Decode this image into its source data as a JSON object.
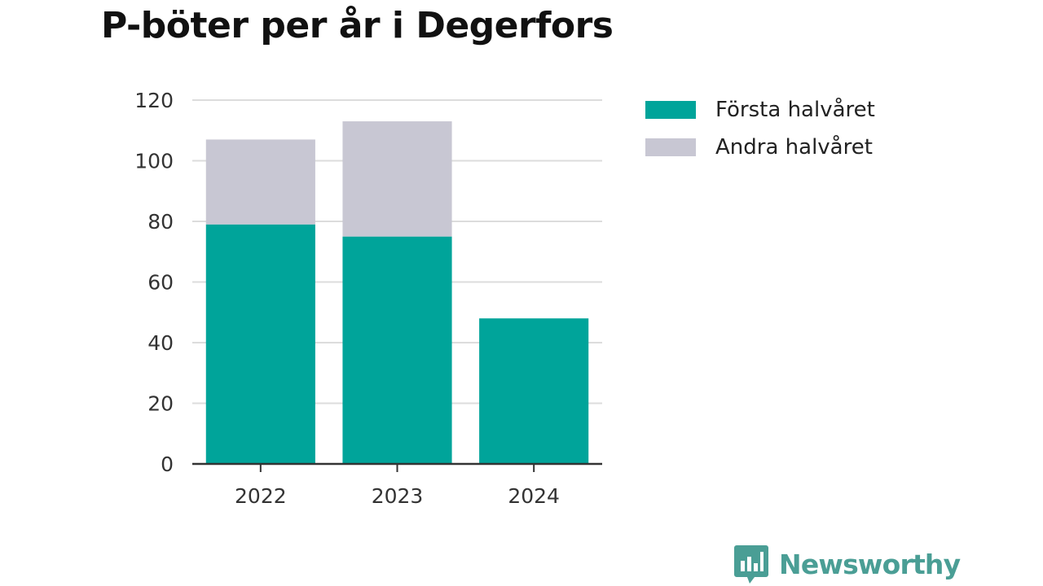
{
  "title": "P-böter per år i Degerfors",
  "chart_data": {
    "type": "bar",
    "stacked": true,
    "title": "P-böter per år i Degerfors",
    "categories": [
      "2022",
      "2023",
      "2024"
    ],
    "series": [
      {
        "name": "Första halvåret",
        "values": [
          79,
          75,
          48
        ],
        "color": "#00a49a"
      },
      {
        "name": "Andra halvåret",
        "values": [
          28,
          38,
          0
        ],
        "color": "#c8c7d3"
      }
    ],
    "ylim": [
      0,
      120
    ],
    "yticks": [
      0,
      20,
      40,
      60,
      80,
      100,
      120
    ],
    "grid": true,
    "legend_position": "top-right",
    "xlabel": "",
    "ylabel": ""
  },
  "brand": {
    "name": "Newsworthy",
    "color": "#4a9e95",
    "icon": "bar-chart-speech-bubble-icon"
  }
}
